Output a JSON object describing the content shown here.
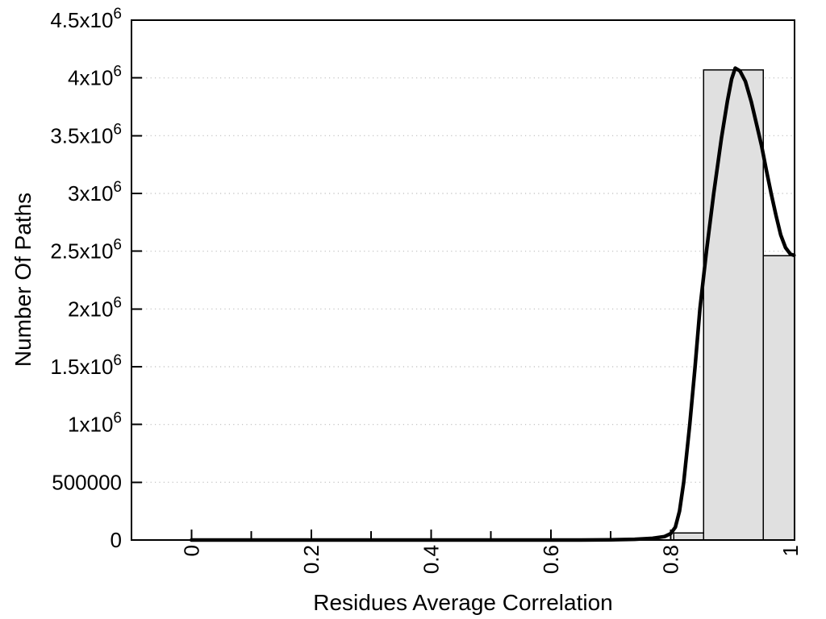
{
  "chart_data": {
    "type": "histogram+line",
    "title": "",
    "xlabel": "Residues Average Correlation",
    "ylabel": "Number Of Paths",
    "xlim": [
      -0.1,
      1.007
    ],
    "ylim": [
      0,
      4500000
    ],
    "grid": "horizontal-dotted",
    "legend": "none",
    "x_major_ticks": [
      {
        "v": 0.0,
        "label": "0"
      },
      {
        "v": 0.2,
        "label": "0.2"
      },
      {
        "v": 0.4,
        "label": "0.4"
      },
      {
        "v": 0.6,
        "label": "0.6"
      },
      {
        "v": 0.8,
        "label": "0.8"
      },
      {
        "v": 1.0,
        "label": "1"
      }
    ],
    "x_minor_ticks": [
      0.1,
      0.3,
      0.5,
      0.7,
      0.9
    ],
    "y_ticks": [
      {
        "v": 0,
        "base": "0",
        "exp": ""
      },
      {
        "v": 500000,
        "base": "500000",
        "exp": ""
      },
      {
        "v": 1000000,
        "base": "1x10",
        "exp": "6"
      },
      {
        "v": 1500000,
        "base": "1.5x10",
        "exp": "6"
      },
      {
        "v": 2000000,
        "base": "2x10",
        "exp": "6"
      },
      {
        "v": 2500000,
        "base": "2.5x10",
        "exp": "6"
      },
      {
        "v": 3000000,
        "base": "3x10",
        "exp": "6"
      },
      {
        "v": 3500000,
        "base": "3.5x10",
        "exp": "6"
      },
      {
        "v": 4000000,
        "base": "4x10",
        "exp": "6"
      },
      {
        "v": 4500000,
        "base": "4.5x10",
        "exp": "6"
      }
    ],
    "bars": [
      {
        "from": 0.805,
        "to": 0.855,
        "value": 60000
      },
      {
        "from": 0.855,
        "to": 0.955,
        "value": 4070000
      },
      {
        "from": 0.955,
        "to": 1.007,
        "value": 2460000
      }
    ],
    "curve_points": [
      [
        0.0,
        0
      ],
      [
        0.05,
        0
      ],
      [
        0.1,
        0
      ],
      [
        0.15,
        0
      ],
      [
        0.2,
        0
      ],
      [
        0.25,
        0
      ],
      [
        0.3,
        0
      ],
      [
        0.35,
        0
      ],
      [
        0.4,
        0
      ],
      [
        0.45,
        0
      ],
      [
        0.5,
        0
      ],
      [
        0.55,
        0
      ],
      [
        0.6,
        0
      ],
      [
        0.65,
        0
      ],
      [
        0.7,
        2000
      ],
      [
        0.74,
        6000
      ],
      [
        0.77,
        15000
      ],
      [
        0.79,
        30000
      ],
      [
        0.8,
        55000
      ],
      [
        0.808,
        110000
      ],
      [
        0.815,
        250000
      ],
      [
        0.822,
        500000
      ],
      [
        0.832,
        1000000
      ],
      [
        0.841,
        1500000
      ],
      [
        0.849,
        2000000
      ],
      [
        0.86,
        2500000
      ],
      [
        0.872,
        3000000
      ],
      [
        0.885,
        3480000
      ],
      [
        0.895,
        3800000
      ],
      [
        0.902,
        3990000
      ],
      [
        0.908,
        4085000
      ],
      [
        0.916,
        4060000
      ],
      [
        0.925,
        3970000
      ],
      [
        0.935,
        3790000
      ],
      [
        0.944,
        3590000
      ],
      [
        0.952,
        3410000
      ],
      [
        0.96,
        3200000
      ],
      [
        0.968,
        3000000
      ],
      [
        0.976,
        2810000
      ],
      [
        0.984,
        2640000
      ],
      [
        0.992,
        2530000
      ],
      [
        1.0,
        2475000
      ],
      [
        1.006,
        2465000
      ]
    ],
    "colors": {
      "background": "#ffffff",
      "bar_fill": "#e0e0e0",
      "bar_stroke": "#000000",
      "curve": "#000000",
      "grid": "#bdbdbd",
      "axis": "#000000",
      "text": "#000000"
    }
  }
}
